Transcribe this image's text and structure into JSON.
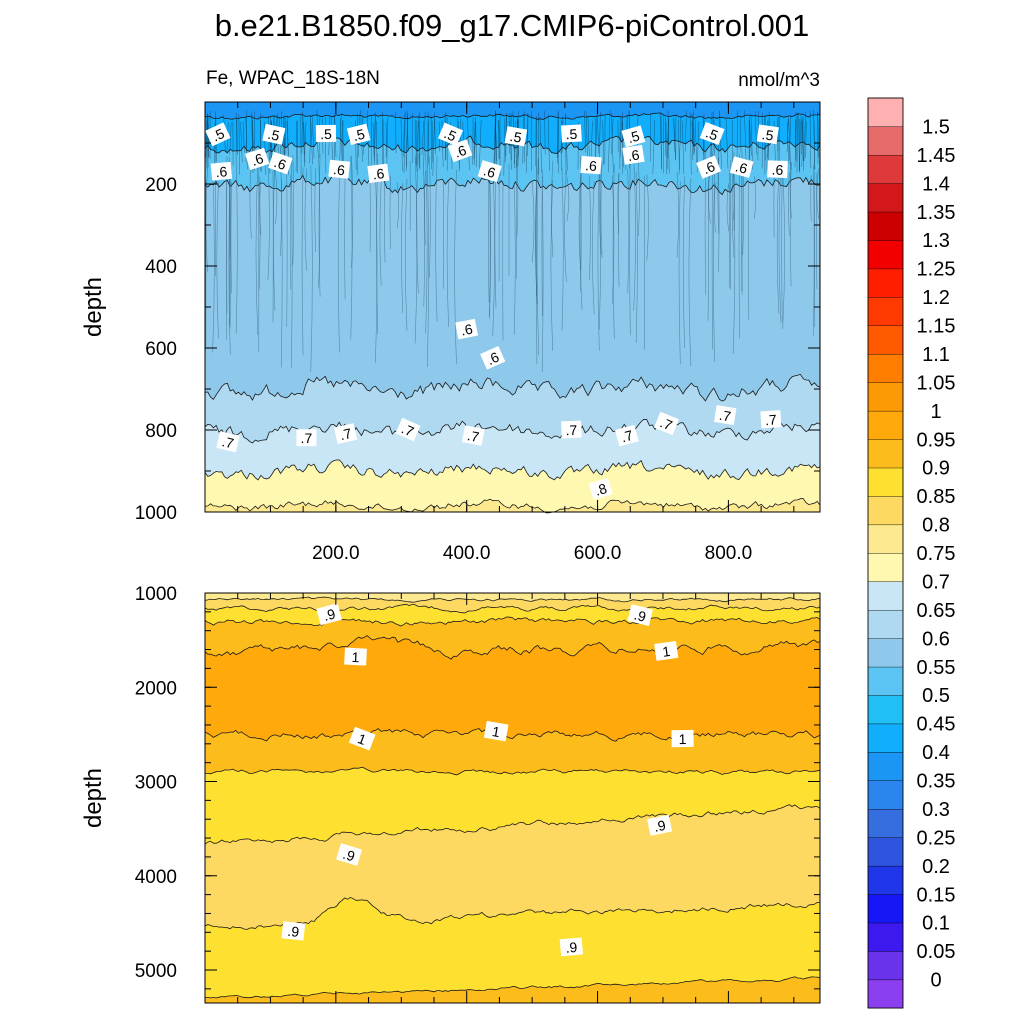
{
  "chart_data": {
    "type": "heatmap",
    "title": "b.e21.B1850.f09_g17.CMIP6-piControl.001",
    "subtitle_left": "Fe, WPAC_18S-18N",
    "subtitle_right": "nmol/m^3",
    "colorbar": {
      "levels": [
        "0",
        "0.05",
        "0.1",
        "0.15",
        "0.2",
        "0.25",
        "0.3",
        "0.35",
        "0.4",
        "0.45",
        "0.5",
        "0.55",
        "0.6",
        "0.65",
        "0.7",
        "0.75",
        "0.8",
        "0.85",
        "0.9",
        "0.95",
        "1",
        "1.05",
        "1.1",
        "1.15",
        "1.2",
        "1.25",
        "1.3",
        "1.35",
        "1.4",
        "1.45",
        "1.5"
      ],
      "colors": [
        "#8b3ff0",
        "#6a32ea",
        "#3d19f0",
        "#1616f6",
        "#1f37e8",
        "#2f55df",
        "#366ee0",
        "#2c84ef",
        "#1b96f5",
        "#10aefc",
        "#20c0f4",
        "#5cc4f2",
        "#8ec9ec",
        "#aed9f0",
        "#c8e6f5",
        "#fff8b0",
        "#fde990",
        "#fdd962",
        "#fee030",
        "#fcbc1c",
        "#ffa90a",
        "#fc9a05",
        "#ff7e00",
        "#ff5a00",
        "#ff3a00",
        "#ff1f00",
        "#f20000",
        "#cc0000",
        "#d3181c",
        "#de3a3a",
        "#e86b6b",
        "#ffb0b0"
      ]
    },
    "panels": [
      {
        "name": "upper",
        "ylabel": "depth",
        "ylim": [
          0,
          1000
        ],
        "yticks": [
          "200",
          "400",
          "600",
          "800",
          "1000"
        ],
        "xlim": [
          0,
          940
        ],
        "xticks": [
          "200.0",
          "400.0",
          "600.0",
          "800.0"
        ],
        "contour_labels": [
          ".5",
          ".5",
          ".5",
          ".5",
          ".5",
          ".5",
          ".5",
          ".5",
          ".5",
          ".5",
          ".6",
          ".6",
          ".6",
          ".6",
          ".6",
          ".6",
          ".6",
          ".6",
          ".6",
          ".6",
          ".6",
          ".6",
          ".6",
          ".6",
          ".7",
          ".7",
          ".7",
          ".7",
          ".7",
          ".7",
          ".7",
          ".7",
          ".7",
          ".7",
          ".8"
        ]
      },
      {
        "name": "lower",
        "ylabel": "depth",
        "ylim": [
          1000,
          5350
        ],
        "yticks": [
          "1000",
          "2000",
          "3000",
          "4000",
          "5000"
        ],
        "xlim": [
          0,
          940
        ],
        "contour_labels": [
          ".9",
          ".9",
          "1",
          "1",
          "1",
          "1",
          "1",
          ".9",
          ".9",
          ".9",
          ".9"
        ]
      }
    ]
  }
}
